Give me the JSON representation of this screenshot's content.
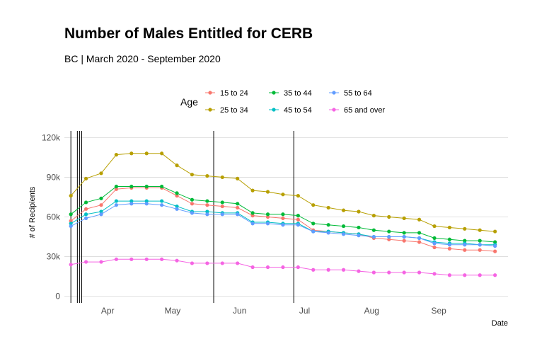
{
  "chart_data": {
    "type": "line",
    "title": "Number of Males Entitled for CERB",
    "subtitle": "BC | March 2020 - September 2020",
    "xlabel": "Date",
    "ylabel": "# of Recipients",
    "legend_title": "Age",
    "legend_position": "top",
    "grid": true,
    "x_range": [
      "2020-03-12",
      "2020-10-03"
    ],
    "ylim": [
      -5000,
      125000
    ],
    "y_ticks": [
      0,
      30000,
      60000,
      90000,
      120000
    ],
    "y_tick_labels": [
      "0",
      "30k",
      "60k",
      "90k",
      "120k"
    ],
    "x_ticks": [
      "2020-04-01",
      "2020-05-01",
      "2020-06-01",
      "2020-07-01",
      "2020-08-01",
      "2020-09-01"
    ],
    "x_tick_labels": [
      "Apr",
      "May",
      "Jun",
      "Jul",
      "Aug",
      "Sep"
    ],
    "vlines": [
      "2020-03-15",
      "2020-03-18",
      "2020-03-19",
      "2020-03-20",
      "2020-05-20",
      "2020-06-26"
    ],
    "x": [
      "2020-03-15",
      "2020-03-22",
      "2020-03-29",
      "2020-04-05",
      "2020-04-12",
      "2020-04-19",
      "2020-04-26",
      "2020-05-03",
      "2020-05-10",
      "2020-05-17",
      "2020-05-24",
      "2020-05-31",
      "2020-06-07",
      "2020-06-14",
      "2020-06-21",
      "2020-06-28",
      "2020-07-05",
      "2020-07-12",
      "2020-07-19",
      "2020-07-26",
      "2020-08-02",
      "2020-08-09",
      "2020-08-16",
      "2020-08-23",
      "2020-08-30",
      "2020-09-06",
      "2020-09-13",
      "2020-09-20",
      "2020-09-27"
    ],
    "series": [
      {
        "name": "15 to 24",
        "color": "#F8766D",
        "values": [
          57000,
          66000,
          69000,
          81000,
          82000,
          82000,
          82000,
          76000,
          70000,
          69000,
          68000,
          67000,
          61000,
          60000,
          59000,
          58000,
          50000,
          49000,
          48000,
          47000,
          44000,
          43000,
          42000,
          41000,
          37000,
          36000,
          35000,
          35000,
          34000
        ]
      },
      {
        "name": "25 to 34",
        "color": "#B79F00",
        "values": [
          76000,
          89000,
          93000,
          107000,
          108000,
          108000,
          108000,
          99000,
          92000,
          91000,
          90000,
          89000,
          80000,
          79000,
          77000,
          76000,
          69000,
          67000,
          65000,
          64000,
          61000,
          60000,
          59000,
          58000,
          53000,
          52000,
          51000,
          50000,
          49000
        ]
      },
      {
        "name": "35 to 44",
        "color": "#00BA38",
        "values": [
          62000,
          71000,
          74000,
          83000,
          83000,
          83000,
          83000,
          78000,
          73000,
          72000,
          71000,
          70000,
          63000,
          62000,
          62000,
          61000,
          55000,
          54000,
          53000,
          52000,
          50000,
          49000,
          48000,
          48000,
          44000,
          43000,
          42000,
          42000,
          41000
        ]
      },
      {
        "name": "45 to 54",
        "color": "#00BFC4",
        "values": [
          55000,
          62000,
          64000,
          72000,
          72000,
          72000,
          72000,
          68000,
          64000,
          64000,
          63000,
          63000,
          56000,
          56000,
          55000,
          55000,
          49000,
          49000,
          48000,
          47000,
          45000,
          45000,
          45000,
          44000,
          41000,
          40000,
          40000,
          39000,
          39000
        ]
      },
      {
        "name": "55 to 64",
        "color": "#619CFF",
        "values": [
          53000,
          59000,
          62000,
          69000,
          70000,
          70000,
          69000,
          66000,
          63000,
          62000,
          62000,
          62000,
          55000,
          55000,
          54000,
          54000,
          49000,
          48000,
          47000,
          46000,
          45000,
          45000,
          45000,
          44000,
          40000,
          39000,
          39000,
          39000,
          38000
        ]
      },
      {
        "name": "65 and over",
        "color": "#F564E3",
        "values": [
          24000,
          26000,
          26000,
          28000,
          28000,
          28000,
          28000,
          27000,
          25000,
          25000,
          25000,
          25000,
          22000,
          22000,
          22000,
          22000,
          20000,
          20000,
          20000,
          19000,
          18000,
          18000,
          18000,
          18000,
          17000,
          16000,
          16000,
          16000,
          16000
        ]
      }
    ]
  }
}
